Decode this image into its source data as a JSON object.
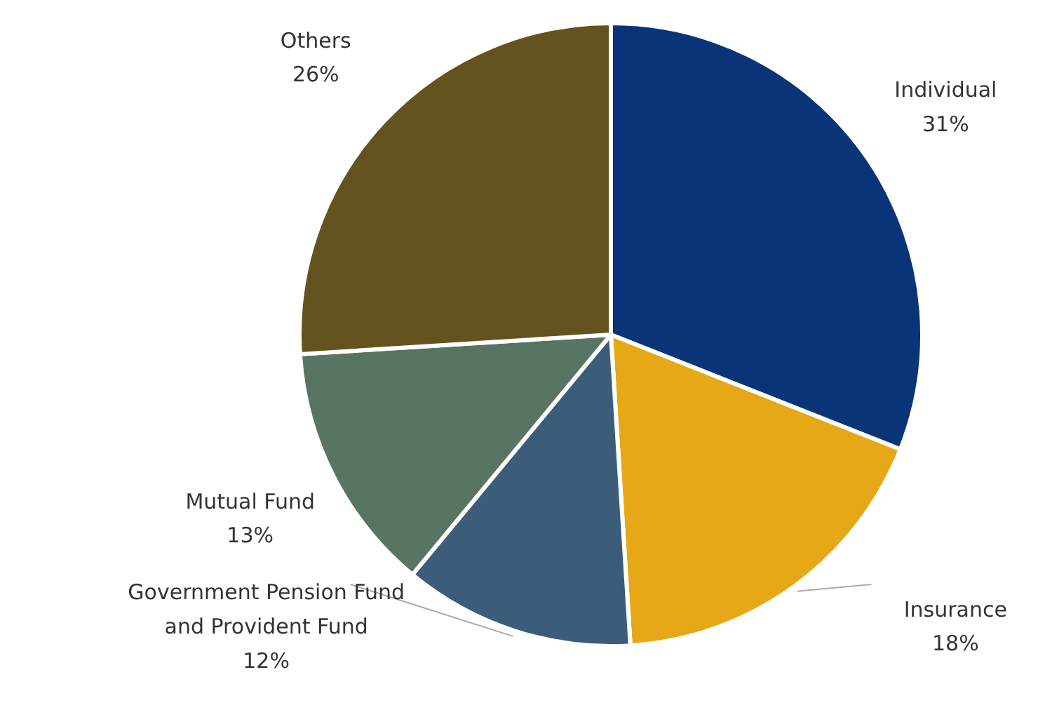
{
  "chart_data": {
    "type": "pie",
    "categories": [
      "Individual",
      "Insurance",
      "Government Pension Fund and Provident Fund",
      "Mutual Fund",
      "Others"
    ],
    "values": [
      31,
      18,
      12,
      13,
      26
    ],
    "value_labels": [
      "31%",
      "18%",
      "12%",
      "13%",
      "26%"
    ],
    "colors": [
      "#0a3478",
      "#e6a817",
      "#3c5d7a",
      "#587462",
      "#65531f"
    ]
  }
}
